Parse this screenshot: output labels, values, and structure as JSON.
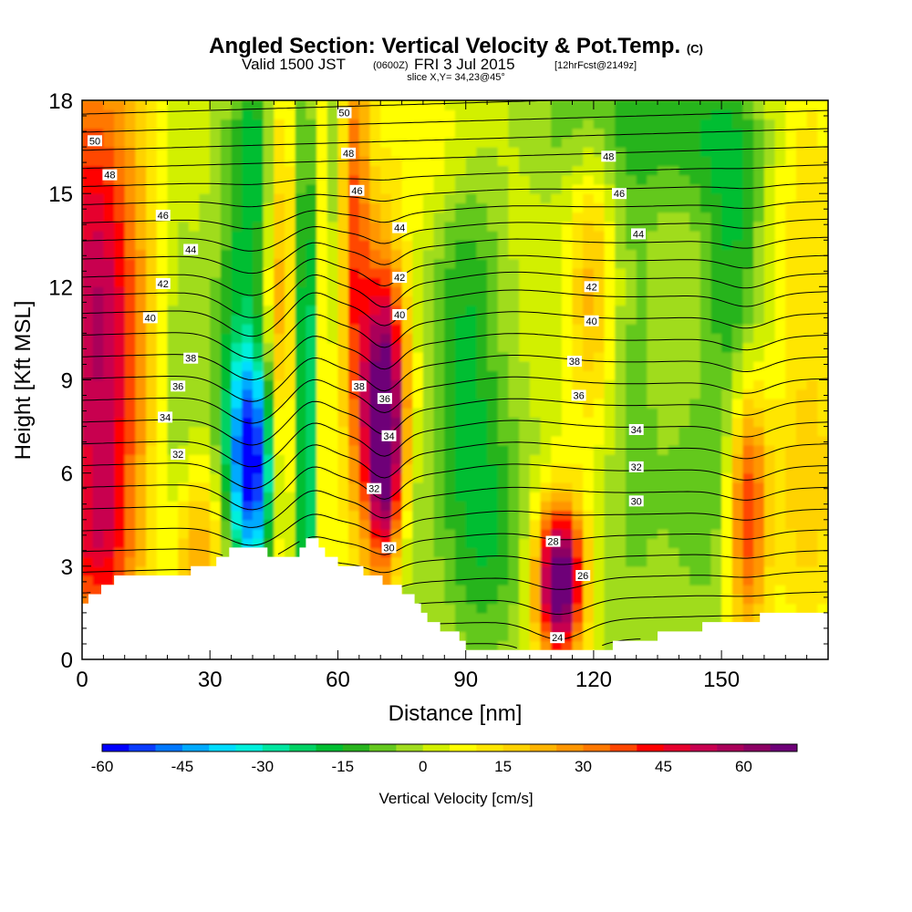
{
  "chart_data": {
    "type": "heatmap",
    "title": "Angled Section: Vertical Velocity & Pot.Temp.",
    "title_units": "(C)",
    "subtitle": {
      "valid": "Valid 1500 JST",
      "utc": "(0600Z)",
      "date": "FRI 3 Jul 2015",
      "forecast": "[12hrFcst@2149z]"
    },
    "slice": "slice X,Y= 34,23@45°",
    "xlabel": "Distance [nm]",
    "ylabel": "Height [Kft MSL]",
    "xlim": [
      0,
      175
    ],
    "ylim": [
      0,
      18
    ],
    "x_ticks": [
      0,
      30,
      60,
      90,
      120,
      150
    ],
    "y_ticks": [
      0,
      3,
      6,
      9,
      12,
      15,
      18
    ],
    "x_tick_labels": [
      "0",
      "30",
      "60",
      "90",
      "120",
      "150"
    ],
    "y_tick_labels": [
      "0",
      "3",
      "6",
      "9",
      "12",
      "15",
      "18"
    ],
    "colorbar": {
      "label": "Vertical Velocity [cm/s]",
      "min": -60,
      "max": 70,
      "step": 5,
      "tick_values": [
        -60,
        -45,
        -30,
        -15,
        0,
        15,
        30,
        45,
        60
      ],
      "tick_labels": [
        "-60",
        "-45",
        "-30",
        "-15",
        "0",
        "15",
        "30",
        "45",
        "60"
      ],
      "colors": [
        "#0000ff",
        "#0a3cff",
        "#0078ff",
        "#00aaff",
        "#00dcff",
        "#00f0dc",
        "#00e6a0",
        "#00d264",
        "#00be32",
        "#28b41e",
        "#64c81e",
        "#a0dc1e",
        "#d2f000",
        "#ffff00",
        "#ffe600",
        "#ffd200",
        "#ffb400",
        "#ff9600",
        "#ff7800",
        "#ff4600",
        "#ff0000",
        "#e6002d",
        "#c80050",
        "#aa005a",
        "#8c0064",
        "#6e0078"
      ]
    },
    "terrain_kft": [
      [
        0,
        1.9
      ],
      [
        4,
        2.3
      ],
      [
        7,
        2.6
      ],
      [
        29,
        2.9
      ],
      [
        32,
        3.2
      ],
      [
        35,
        3.6
      ],
      [
        49,
        3.3
      ],
      [
        52,
        3.9
      ],
      [
        56,
        3.6
      ],
      [
        59,
        3.1
      ],
      [
        65,
        2.9
      ],
      [
        73,
        2.3
      ],
      [
        78,
        1.8
      ],
      [
        82,
        1.1
      ],
      [
        87,
        0.8
      ],
      [
        90,
        0.4
      ],
      [
        106,
        0.3
      ],
      [
        117,
        0.3
      ],
      [
        130,
        0.6
      ],
      [
        142,
        1.0
      ],
      [
        157,
        1.3
      ],
      [
        165,
        1.6
      ],
      [
        175,
        1.6
      ]
    ],
    "vertical_velocity_cells": [
      {
        "x": 2,
        "z": 13,
        "sx": 9,
        "sz": 6,
        "w": 35
      },
      {
        "x": 5,
        "z": 8,
        "sx": 8,
        "sz": 5,
        "w": 25
      },
      {
        "x": 4,
        "z": 3.5,
        "sx": 6,
        "sz": 2,
        "w": 20
      },
      {
        "x": 22,
        "z": 7,
        "sx": 4,
        "sz": 6,
        "w": -12
      },
      {
        "x": 27,
        "z": 3.5,
        "sx": 5,
        "sz": 2,
        "w": 25
      },
      {
        "x": 40,
        "z": 6.3,
        "sx": 4,
        "sz": 2.6,
        "w": -60
      },
      {
        "x": 36,
        "z": 11,
        "sx": 4,
        "sz": 6,
        "w": -15
      },
      {
        "x": 41,
        "z": 16,
        "sx": 3,
        "sz": 3,
        "w": -18
      },
      {
        "x": 47,
        "z": 10,
        "sx": 3,
        "sz": 6,
        "w": 25
      },
      {
        "x": 53,
        "z": 8.5,
        "sx": 2.5,
        "sz": 7,
        "w": -40
      },
      {
        "x": 56.5,
        "z": 12,
        "sx": 2,
        "sz": 8,
        "w": 30
      },
      {
        "x": 59,
        "z": 15,
        "sx": 2.2,
        "sz": 6,
        "w": -30
      },
      {
        "x": 63,
        "z": 14,
        "sx": 3,
        "sz": 6,
        "w": 35
      },
      {
        "x": 71,
        "z": 7,
        "sx": 3.5,
        "sz": 3,
        "w": 75
      },
      {
        "x": 70,
        "z": 11,
        "sx": 4,
        "sz": 3,
        "w": 20
      },
      {
        "x": 76,
        "z": 4,
        "sx": 3,
        "sz": 2.5,
        "w": -12
      },
      {
        "x": 90,
        "z": 11,
        "sx": 6,
        "sz": 5,
        "w": -18
      },
      {
        "x": 96,
        "z": 4,
        "sx": 8,
        "sz": 3,
        "w": -15
      },
      {
        "x": 112,
        "z": 2.5,
        "sx": 4,
        "sz": 1.8,
        "w": 75
      },
      {
        "x": 120,
        "z": 12,
        "sx": 4,
        "sz": 3.5,
        "w": 22
      },
      {
        "x": 128,
        "z": 9,
        "sx": 6,
        "sz": 8,
        "w": -10
      },
      {
        "x": 147,
        "z": 5,
        "sx": 8,
        "sz": 3,
        "w": -12
      },
      {
        "x": 156,
        "z": 5,
        "sx": 3.5,
        "sz": 3,
        "w": 45
      },
      {
        "x": 153,
        "z": 12,
        "sx": 5,
        "sz": 4,
        "w": -18
      },
      {
        "x": 170,
        "z": 14,
        "sx": 6,
        "sz": 5,
        "w": 10
      },
      {
        "x": 170,
        "z": 5,
        "sx": 5,
        "sz": 3,
        "w": 15
      },
      {
        "x": 118,
        "z": 17.5,
        "sx": 10,
        "sz": 2,
        "w": -12
      },
      {
        "x": 145,
        "z": 17,
        "sx": 10,
        "sz": 2,
        "w": -15
      },
      {
        "x": 85,
        "z": 16.5,
        "sx": 8,
        "sz": 2,
        "w": 10
      }
    ],
    "theta_contours": {
      "start": 24,
      "end": 52,
      "interval": 1,
      "labels": [
        {
          "text": "50",
          "x": 3,
          "z": 16.7
        },
        {
          "text": "48",
          "x": 6.5,
          "z": 15.6
        },
        {
          "text": "46",
          "x": 19,
          "z": 14.3
        },
        {
          "text": "44",
          "x": 25.5,
          "z": 13.2
        },
        {
          "text": "42",
          "x": 19,
          "z": 12.1
        },
        {
          "text": "40",
          "x": 16,
          "z": 11.0
        },
        {
          "text": "38",
          "x": 25.5,
          "z": 9.7
        },
        {
          "text": "36",
          "x": 22.5,
          "z": 8.8
        },
        {
          "text": "34",
          "x": 19.5,
          "z": 7.8
        },
        {
          "text": "32",
          "x": 22.5,
          "z": 6.6
        },
        {
          "text": "50",
          "x": 61.5,
          "z": 17.6
        },
        {
          "text": "48",
          "x": 62.5,
          "z": 16.3
        },
        {
          "text": "46",
          "x": 64.5,
          "z": 15.1
        },
        {
          "text": "44",
          "x": 74.5,
          "z": 13.9
        },
        {
          "text": "42",
          "x": 74.5,
          "z": 12.3
        },
        {
          "text": "40",
          "x": 74.5,
          "z": 11.1
        },
        {
          "text": "38",
          "x": 65,
          "z": 8.8
        },
        {
          "text": "36",
          "x": 71,
          "z": 8.4
        },
        {
          "text": "34",
          "x": 72,
          "z": 7.2
        },
        {
          "text": "32",
          "x": 68.5,
          "z": 5.5
        },
        {
          "text": "30",
          "x": 72,
          "z": 3.6
        },
        {
          "text": "48",
          "x": 123.5,
          "z": 16.2
        },
        {
          "text": "46",
          "x": 126,
          "z": 15.0
        },
        {
          "text": "44",
          "x": 130.5,
          "z": 13.7
        },
        {
          "text": "42",
          "x": 119.5,
          "z": 12.0
        },
        {
          "text": "40",
          "x": 119.5,
          "z": 10.9
        },
        {
          "text": "38",
          "x": 115.5,
          "z": 9.6
        },
        {
          "text": "36",
          "x": 116.5,
          "z": 8.5
        },
        {
          "text": "34",
          "x": 130,
          "z": 7.4
        },
        {
          "text": "32",
          "x": 130,
          "z": 6.2
        },
        {
          "text": "30",
          "x": 130,
          "z": 5.1
        },
        {
          "text": "28",
          "x": 110.5,
          "z": 3.8
        },
        {
          "text": "26",
          "x": 117.5,
          "z": 2.7
        },
        {
          "text": "24",
          "x": 111.5,
          "z": 0.7
        }
      ]
    }
  }
}
